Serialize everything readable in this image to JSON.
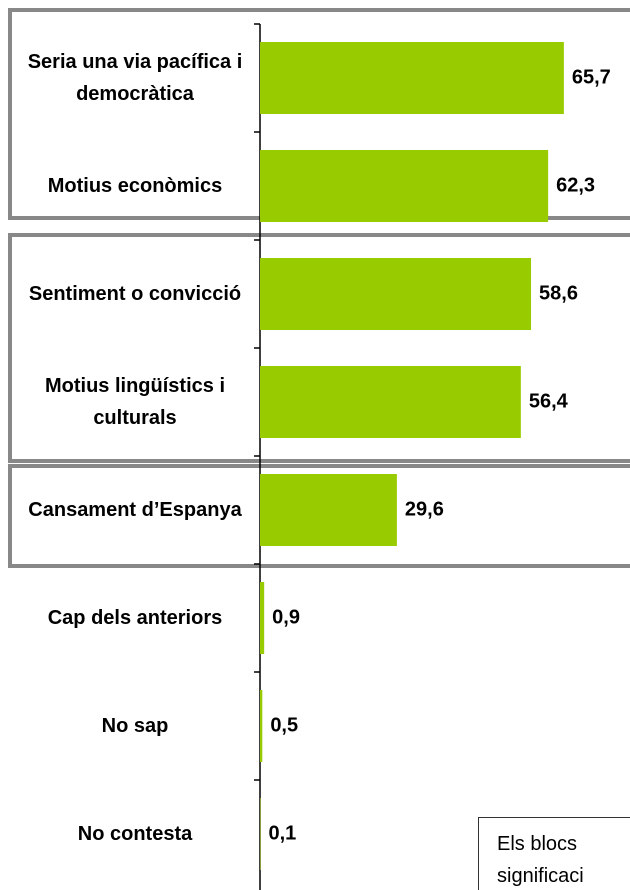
{
  "chart_data": {
    "type": "bar",
    "orientation": "horizontal",
    "categories": [
      "Seria una via pacífica i democràtica",
      "Motius econòmics",
      "Sentiment o convicció",
      "Motius lingüístics i culturals",
      "Cansament d’Espanya",
      "Cap dels anteriors",
      "No sap",
      "No contesta"
    ],
    "values": [
      65.7,
      62.3,
      58.6,
      56.4,
      29.6,
      0.9,
      0.5,
      0.1
    ],
    "value_labels": [
      "65,7",
      "62,3",
      "58,6",
      "56,4",
      "29,6",
      "0,9",
      "0,5",
      "0,1"
    ],
    "color": "#99cc00",
    "xlim": [
      0,
      80
    ],
    "annotation": [
      "Els blocs",
      "significaci"
    ]
  }
}
